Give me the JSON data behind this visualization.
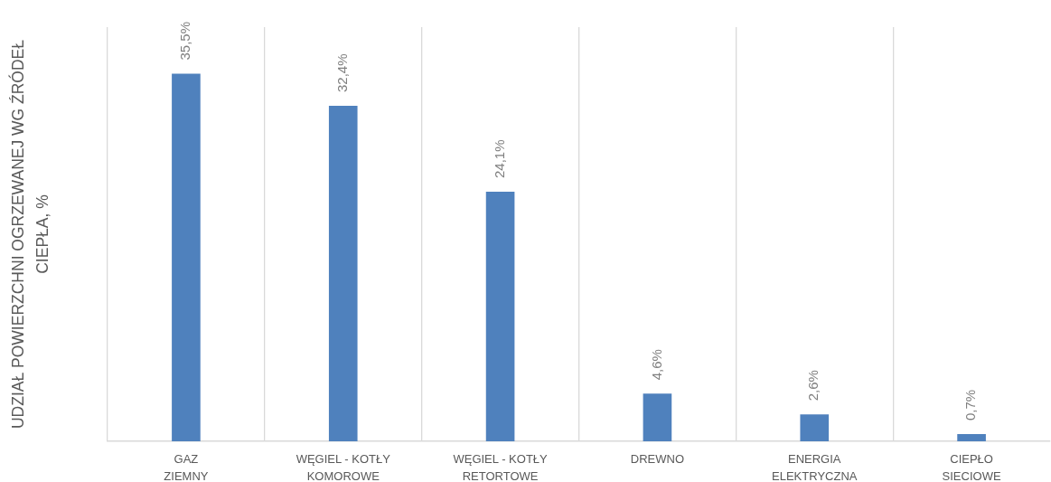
{
  "chart_data": {
    "type": "bar",
    "ylabel": "UDZIAŁ POWIERZCHNI OGRZEWANEJ WG ŹRÓDEŁ CIEPŁA, %",
    "categories": [
      "GAZ ZIEMNY",
      "WĘGIEL - KOTŁY KOMOROWE",
      "WĘGIEL - KOTŁY RETORTOWE",
      "DREWNO",
      "ENERGIA ELEKTRYCZNA",
      "CIEPŁO SIECIOWE"
    ],
    "values": [
      35.5,
      32.4,
      24.1,
      4.6,
      2.6,
      0.7
    ],
    "value_labels": [
      "35,5%",
      "32,4%",
      "24,1%",
      "4,6%",
      "2,6%",
      "0,7%"
    ],
    "color": "#4f81bd",
    "grid": "x",
    "tick_labels": "x"
  }
}
